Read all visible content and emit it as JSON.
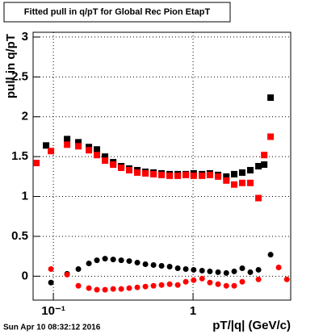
{
  "chart_data": {
    "type": "scatter",
    "title": "Fitted pull in q/pT for Global Rec Pion EtapT",
    "y_label": "pull in q/pT",
    "x_label": "pT/|q| (GeV/c)",
    "footer": "Sun Apr 10 08:32:12 2016",
    "xscale": "log",
    "xlim": [
      0.0716,
      5.0
    ],
    "ylim": [
      -0.3,
      3.06
    ],
    "xticks": [
      {
        "value": 0.1,
        "label": "10⁻¹"
      },
      1
    ],
    "yticks": [
      0,
      0.5,
      1,
      1.5,
      2,
      2.5,
      3
    ],
    "grid": true,
    "series": [
      {
        "color": "#000000",
        "marker": "square",
        "x": [
          0.0887,
          0.1254,
          0.151,
          0.1796,
          0.205,
          0.2344,
          0.268,
          0.306,
          0.349,
          0.399,
          0.456,
          0.521,
          0.595,
          0.68,
          0.777,
          0.887,
          1.01,
          1.16,
          1.32,
          1.51,
          1.73,
          1.97,
          2.25,
          2.57,
          2.94,
          3.23,
          3.59
        ],
        "values": [
          1.64,
          1.72,
          1.68,
          1.62,
          1.59,
          1.5,
          1.43,
          1.38,
          1.35,
          1.33,
          1.31,
          1.3,
          1.29,
          1.28,
          1.28,
          1.28,
          1.29,
          1.28,
          1.29,
          1.27,
          1.25,
          1.28,
          1.3,
          1.33,
          1.38,
          1.4,
          2.24
        ]
      },
      {
        "color": "#ff0000",
        "marker": "square",
        "x": [
          0.0756,
          0.0961,
          0.1254,
          0.151,
          0.1796,
          0.205,
          0.2344,
          0.268,
          0.306,
          0.349,
          0.399,
          0.456,
          0.521,
          0.595,
          0.68,
          0.777,
          0.887,
          1.01,
          1.16,
          1.32,
          1.51,
          1.73,
          1.97,
          2.25,
          2.57,
          2.94,
          3.23,
          3.59
        ],
        "values": [
          1.42,
          1.57,
          1.65,
          1.63,
          1.58,
          1.52,
          1.45,
          1.4,
          1.36,
          1.33,
          1.3,
          1.29,
          1.28,
          1.27,
          1.26,
          1.26,
          1.27,
          1.26,
          1.26,
          1.27,
          1.25,
          1.2,
          1.15,
          1.17,
          1.17,
          0.98,
          1.52,
          1.75
        ]
      },
      {
        "color": "#000000",
        "marker": "circle",
        "x": [
          0.0961,
          0.1254,
          0.151,
          0.1796,
          0.205,
          0.2344,
          0.268,
          0.306,
          0.349,
          0.399,
          0.456,
          0.521,
          0.595,
          0.68,
          0.777,
          0.887,
          1.01,
          1.16,
          1.32,
          1.51,
          1.73,
          1.97,
          2.25,
          2.57,
          2.94,
          3.59
        ],
        "values": [
          -0.08,
          0.03,
          0.09,
          0.16,
          0.2,
          0.22,
          0.21,
          0.2,
          0.19,
          0.17,
          0.15,
          0.14,
          0.13,
          0.12,
          0.1,
          0.09,
          0.08,
          0.07,
          0.06,
          0.05,
          0.04,
          0.06,
          0.1,
          0.05,
          0.08,
          0.27
        ]
      },
      {
        "color": "#ff0000",
        "marker": "circle",
        "x": [
          0.0961,
          0.1254,
          0.151,
          0.1796,
          0.205,
          0.2344,
          0.268,
          0.306,
          0.349,
          0.399,
          0.456,
          0.521,
          0.595,
          0.68,
          0.777,
          0.887,
          1.01,
          1.16,
          1.32,
          1.51,
          1.73,
          1.97,
          2.25,
          2.94,
          4.1,
          4.69
        ],
        "values": [
          0.09,
          0.02,
          -0.12,
          -0.15,
          -0.17,
          -0.17,
          -0.16,
          -0.16,
          -0.15,
          -0.14,
          -0.13,
          -0.12,
          -0.11,
          -0.1,
          -0.11,
          -0.07,
          -0.05,
          -0.03,
          -0.08,
          -0.1,
          -0.12,
          -0.12,
          -0.07,
          -0.04,
          0.11,
          -0.04
        ]
      }
    ]
  }
}
